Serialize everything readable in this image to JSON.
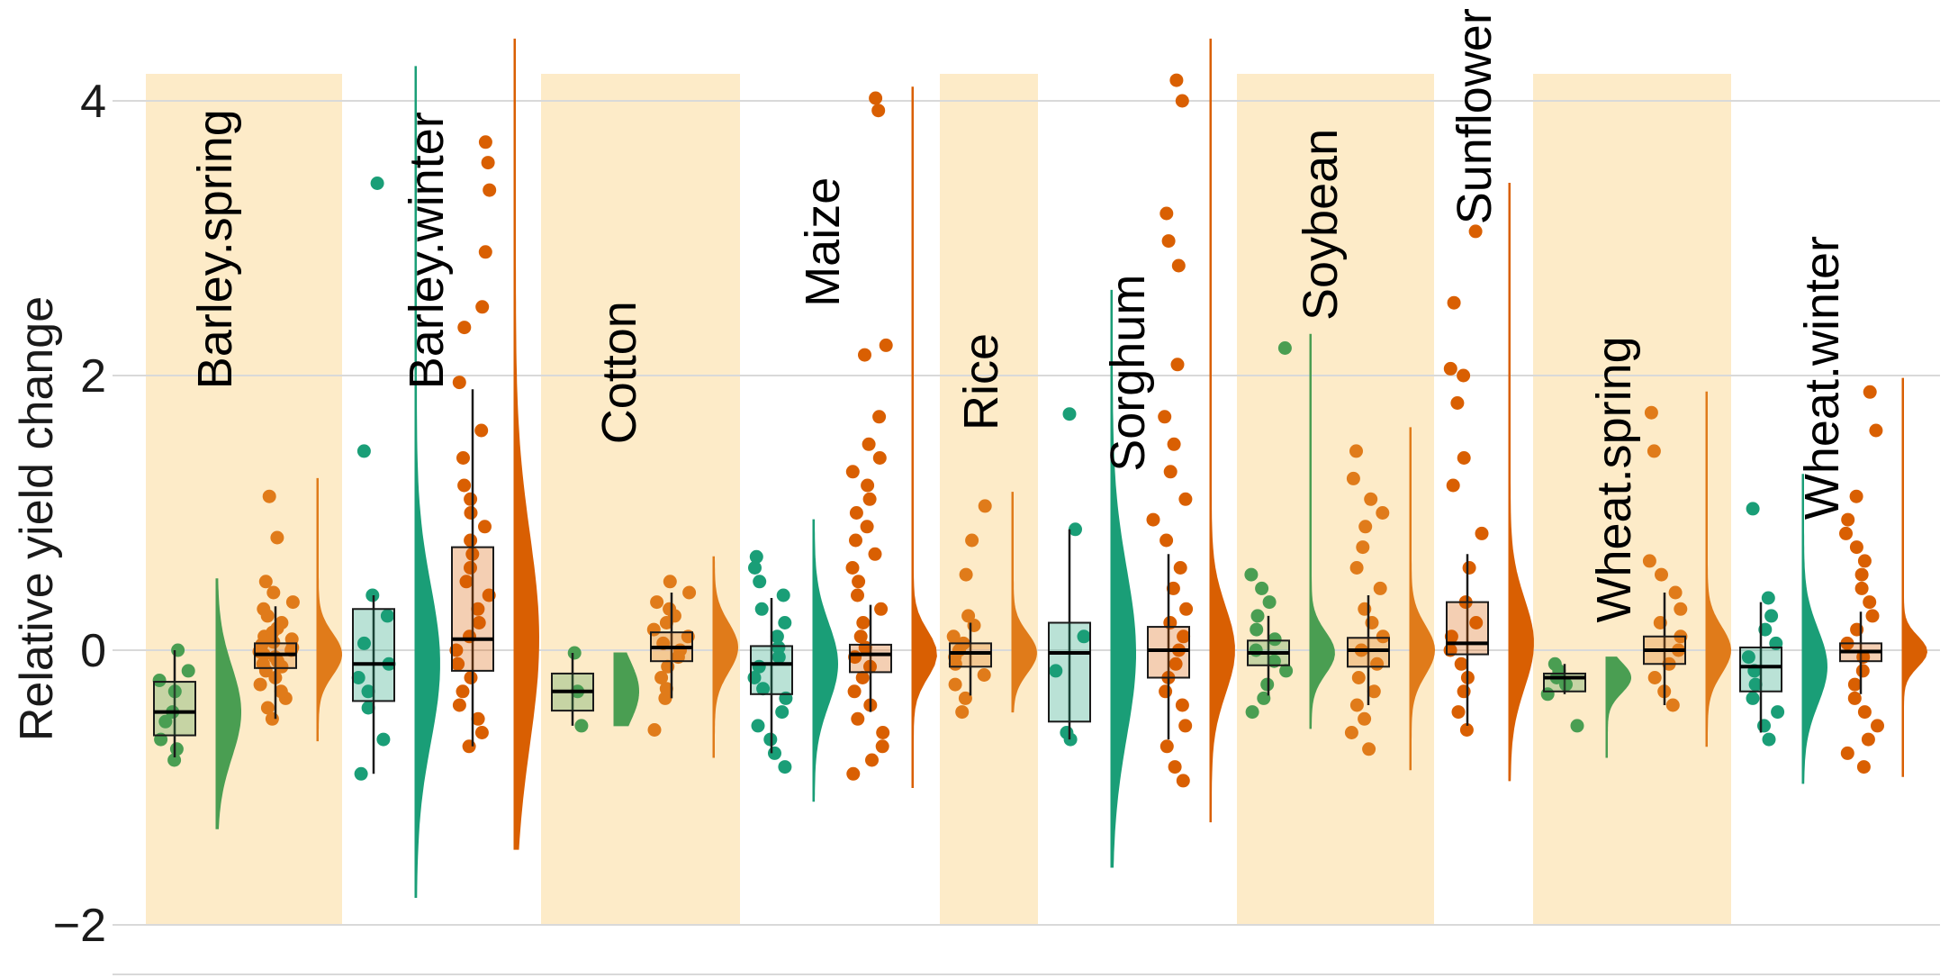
{
  "chart_data": {
    "type": "raincloud",
    "title": "",
    "xlabel": "",
    "ylabel": "Relative yield change",
    "ylim": [
      -2,
      4.2
    ],
    "yticks": [
      -2,
      0,
      2,
      4
    ],
    "grid": true,
    "legend": "none",
    "colors": {
      "band": "#fdebc8",
      "green_a": "#4a9e52",
      "green_b": "#1a9e77",
      "orange": "#d95f02",
      "orange_light": "#e07b1a",
      "grid": "#d9d9d9"
    },
    "crops": [
      {
        "name": "Barley.spring",
        "shaded": true,
        "label_bottom": 1.9,
        "groups": [
          {
            "color": "green_a",
            "median": -0.45,
            "q1": -0.62,
            "q3": -0.23,
            "wlo": -0.78,
            "whi": 0.0,
            "dmin": -1.3,
            "dmax": 0.52,
            "points": [
              -0.8,
              -0.72,
              -0.65,
              -0.52,
              -0.45,
              -0.3,
              -0.22,
              -0.15,
              0.0
            ]
          },
          {
            "color": "orange_light",
            "median": -0.03,
            "q1": -0.13,
            "q3": 0.05,
            "wlo": -0.5,
            "whi": 0.32,
            "dmin": -0.66,
            "dmax": 1.25,
            "points": [
              -0.5,
              -0.42,
              -0.35,
              -0.3,
              -0.25,
              -0.2,
              -0.15,
              -0.12,
              -0.1,
              -0.08,
              -0.05,
              -0.03,
              -0.01,
              0.0,
              0.02,
              0.04,
              0.06,
              0.08,
              0.1,
              0.13,
              0.16,
              0.2,
              0.25,
              0.3,
              0.35,
              0.42,
              0.5,
              0.82,
              1.12
            ]
          }
        ]
      },
      {
        "name": "Barley.winter",
        "shaded": false,
        "label_bottom": 1.9,
        "groups": [
          {
            "color": "green_b",
            "median": -0.1,
            "q1": -0.37,
            "q3": 0.3,
            "wlo": -0.9,
            "whi": 0.4,
            "dmin": -1.8,
            "dmax": 4.25,
            "points": [
              -0.9,
              -0.65,
              -0.42,
              -0.3,
              -0.2,
              -0.1,
              0.05,
              0.25,
              0.4,
              1.45,
              3.4
            ]
          },
          {
            "color": "orange",
            "median": 0.08,
            "q1": -0.15,
            "q3": 0.75,
            "wlo": -0.7,
            "whi": 1.9,
            "dmin": -1.45,
            "dmax": 4.45,
            "points": [
              -0.7,
              -0.6,
              -0.5,
              -0.4,
              -0.3,
              -0.2,
              -0.1,
              0.0,
              0.1,
              0.2,
              0.3,
              0.4,
              0.5,
              0.6,
              0.7,
              0.8,
              0.9,
              1.0,
              1.1,
              1.2,
              1.4,
              1.6,
              1.95,
              2.35,
              2.5,
              2.9,
              3.35,
              3.55,
              3.7
            ]
          }
        ]
      },
      {
        "name": "Cotton",
        "shaded": true,
        "label_bottom": 1.5,
        "groups": [
          {
            "color": "green_a",
            "median": -0.3,
            "q1": -0.44,
            "q3": -0.17,
            "wlo": -0.55,
            "whi": -0.02,
            "dmin": -0.55,
            "dmax": -0.02,
            "points": [
              -0.55,
              -0.3,
              -0.02
            ]
          },
          {
            "color": "orange_light",
            "median": 0.02,
            "q1": -0.08,
            "q3": 0.13,
            "wlo": -0.35,
            "whi": 0.42,
            "dmin": -0.78,
            "dmax": 0.68,
            "points": [
              -0.58,
              -0.35,
              -0.28,
              -0.2,
              -0.12,
              -0.05,
              0.0,
              0.05,
              0.1,
              0.15,
              0.2,
              0.25,
              0.3,
              0.35,
              0.42,
              0.5
            ]
          }
        ]
      },
      {
        "name": "Maize",
        "shaded": false,
        "label_bottom": 2.5,
        "groups": [
          {
            "color": "green_b",
            "median": -0.1,
            "q1": -0.32,
            "q3": 0.03,
            "wlo": -0.75,
            "whi": 0.38,
            "dmin": -1.1,
            "dmax": 0.95,
            "points": [
              -0.85,
              -0.75,
              -0.65,
              -0.55,
              -0.45,
              -0.35,
              -0.28,
              -0.2,
              -0.12,
              -0.05,
              0.02,
              0.1,
              0.2,
              0.3,
              0.4,
              0.5,
              0.6,
              0.68
            ]
          },
          {
            "color": "orange",
            "median": -0.03,
            "q1": -0.16,
            "q3": 0.04,
            "wlo": -0.45,
            "whi": 0.33,
            "dmin": -1.0,
            "dmax": 4.1,
            "points": [
              -0.9,
              -0.8,
              -0.7,
              -0.6,
              -0.5,
              -0.4,
              -0.3,
              -0.2,
              -0.12,
              -0.05,
              0.02,
              0.1,
              0.2,
              0.3,
              0.4,
              0.5,
              0.6,
              0.7,
              0.8,
              0.9,
              1.0,
              1.1,
              1.2,
              1.3,
              1.4,
              1.5,
              1.7,
              2.15,
              2.22,
              3.93,
              4.02
            ]
          }
        ]
      },
      {
        "name": "Rice",
        "shaded": true,
        "label_bottom": 1.6,
        "groups": [
          {
            "color": "orange_light",
            "median": -0.02,
            "q1": -0.12,
            "q3": 0.05,
            "wlo": -0.33,
            "whi": 0.2,
            "dmin": -0.45,
            "dmax": 1.15,
            "points": [
              -0.45,
              -0.35,
              -0.25,
              -0.18,
              -0.1,
              -0.05,
              0.0,
              0.05,
              0.1,
              0.18,
              0.25,
              0.55,
              0.8,
              1.05
            ]
          }
        ]
      },
      {
        "name": "Sorghum",
        "shaded": false,
        "label_bottom": 1.3,
        "groups": [
          {
            "color": "green_b",
            "median": -0.02,
            "q1": -0.52,
            "q3": 0.2,
            "wlo": -0.65,
            "whi": 0.88,
            "dmin": -1.58,
            "dmax": 2.62,
            "points": [
              -0.65,
              -0.6,
              -0.15,
              0.1,
              0.88,
              1.72
            ]
          },
          {
            "color": "orange",
            "median": 0.0,
            "q1": -0.2,
            "q3": 0.17,
            "wlo": -0.65,
            "whi": 0.7,
            "dmin": -1.25,
            "dmax": 4.45,
            "points": [
              -0.95,
              -0.85,
              -0.7,
              -0.55,
              -0.4,
              -0.3,
              -0.2,
              -0.1,
              0.0,
              0.1,
              0.2,
              0.3,
              0.45,
              0.6,
              0.8,
              0.95,
              1.1,
              1.3,
              1.5,
              1.7,
              2.08,
              2.8,
              2.98,
              3.18,
              4.0,
              4.15
            ]
          }
        ]
      },
      {
        "name": "Soybean",
        "shaded": true,
        "label_bottom": 2.4,
        "groups": [
          {
            "color": "green_a",
            "median": -0.02,
            "q1": -0.11,
            "q3": 0.07,
            "wlo": -0.33,
            "whi": 0.25,
            "dmin": -0.57,
            "dmax": 2.3,
            "points": [
              -0.45,
              -0.35,
              -0.25,
              -0.15,
              -0.08,
              0.0,
              0.08,
              0.15,
              0.25,
              0.35,
              0.45,
              0.55,
              2.2
            ]
          },
          {
            "color": "orange_light",
            "median": 0.0,
            "q1": -0.12,
            "q3": 0.09,
            "wlo": -0.4,
            "whi": 0.4,
            "dmin": -0.87,
            "dmax": 1.62,
            "points": [
              -0.72,
              -0.6,
              -0.5,
              -0.4,
              -0.3,
              -0.2,
              -0.1,
              0.0,
              0.1,
              0.2,
              0.3,
              0.45,
              0.6,
              0.75,
              0.9,
              1.0,
              1.1,
              1.25,
              1.45
            ]
          }
        ]
      },
      {
        "name": "Sunflower",
        "shaded": false,
        "label_bottom": 3.1,
        "groups": [
          {
            "color": "orange",
            "median": 0.05,
            "q1": -0.03,
            "q3": 0.35,
            "wlo": -0.55,
            "whi": 0.7,
            "dmin": -0.95,
            "dmax": 3.4,
            "points": [
              -0.58,
              -0.45,
              -0.3,
              -0.2,
              -0.1,
              0.0,
              0.1,
              0.2,
              0.35,
              0.6,
              0.85,
              1.2,
              1.4,
              1.8,
              2.0,
              2.05,
              2.53,
              3.05
            ]
          }
        ]
      },
      {
        "name": "Wheat.spring",
        "shaded": true,
        "label_bottom": 0.2,
        "groups": [
          {
            "color": "green_a",
            "median": -0.2,
            "q1": -0.3,
            "q3": -0.17,
            "wlo": -0.32,
            "whi": -0.1,
            "dmin": -0.78,
            "dmax": -0.05,
            "points": [
              -0.55,
              -0.32,
              -0.25,
              -0.2,
              -0.15,
              -0.1
            ]
          },
          {
            "color": "orange_light",
            "median": 0.0,
            "q1": -0.1,
            "q3": 0.1,
            "wlo": -0.4,
            "whi": 0.42,
            "dmin": -0.7,
            "dmax": 1.88,
            "points": [
              -0.4,
              -0.3,
              -0.2,
              -0.1,
              0.0,
              0.1,
              0.2,
              0.3,
              0.42,
              0.55,
              0.65,
              1.45,
              1.73
            ]
          }
        ]
      },
      {
        "name": "Wheat.winter",
        "shaded": false,
        "label_bottom": 0.95,
        "groups": [
          {
            "color": "green_b",
            "median": -0.12,
            "q1": -0.3,
            "q3": 0.02,
            "wlo": -0.6,
            "whi": 0.35,
            "dmin": -0.97,
            "dmax": 1.28,
            "points": [
              -0.65,
              -0.55,
              -0.45,
              -0.35,
              -0.25,
              -0.15,
              -0.05,
              0.05,
              0.15,
              0.25,
              0.38,
              1.03
            ]
          },
          {
            "color": "orange",
            "median": -0.01,
            "q1": -0.08,
            "q3": 0.05,
            "wlo": -0.32,
            "whi": 0.28,
            "dmin": -0.92,
            "dmax": 1.98,
            "points": [
              -0.85,
              -0.75,
              -0.65,
              -0.55,
              -0.45,
              -0.35,
              -0.25,
              -0.15,
              -0.05,
              0.05,
              0.15,
              0.25,
              0.35,
              0.45,
              0.55,
              0.65,
              0.75,
              0.85,
              0.95,
              1.12,
              1.6,
              1.88
            ]
          }
        ]
      }
    ]
  }
}
